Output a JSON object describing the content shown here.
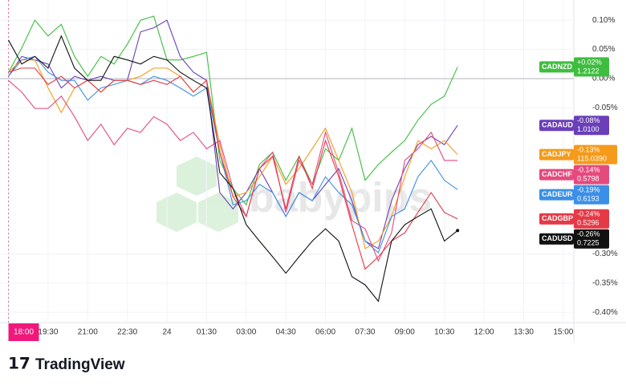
{
  "chart_data": {
    "type": "line",
    "x": [
      0,
      0.5,
      1,
      1.5,
      2,
      2.5,
      3,
      3.5,
      4,
      4.5,
      5,
      5.5,
      6,
      6.5,
      7,
      7.5,
      8,
      8.5,
      9,
      9.5,
      10,
      10.5,
      11,
      11.5,
      12,
      12.5,
      13,
      13.5,
      14,
      14.5,
      15,
      15.5,
      16,
      16.5,
      17
    ],
    "xlim": [
      -0.32,
      21.4
    ],
    "xticks": [
      {
        "value": 0,
        "label": "18:00"
      },
      {
        "value": 1.5,
        "label": "19:30"
      },
      {
        "value": 3,
        "label": "21:00"
      },
      {
        "value": 4.5,
        "label": "22:30"
      },
      {
        "value": 6,
        "label": "24"
      },
      {
        "value": 7.5,
        "label": "01:30"
      },
      {
        "value": 9,
        "label": "03:00"
      },
      {
        "value": 10.5,
        "label": "04:30"
      },
      {
        "value": 12,
        "label": "06:00"
      },
      {
        "value": 13.5,
        "label": "07:30"
      },
      {
        "value": 15,
        "label": "09:00"
      },
      {
        "value": 16.5,
        "label": "10:30"
      },
      {
        "value": 18,
        "label": "12:00"
      },
      {
        "value": 19.5,
        "label": "13:30"
      },
      {
        "value": 21,
        "label": "15:00"
      }
    ],
    "ylim": [
      -0.4176,
      0.1346
    ],
    "yticks": [
      {
        "value": 0.1,
        "label": "0.10%"
      },
      {
        "value": 0.05,
        "label": "0.05%"
      },
      {
        "value": 0,
        "label": "0.00%"
      },
      {
        "value": -0.05,
        "label": "-0.05%"
      },
      {
        "value": -0.3,
        "label": "-0.30%"
      },
      {
        "value": -0.35,
        "label": "-0.35%"
      },
      {
        "value": -0.4,
        "label": "-0.40%"
      }
    ],
    "grid": true,
    "watermark": "babypips",
    "footer": "TradingView",
    "series": [
      {
        "name": "CADNZD",
        "color": "#3fbd3f",
        "value_label": "+0.02%",
        "price": "1.2122",
        "values": [
          0.011,
          0.052,
          0.1,
          0.073,
          0.093,
          0.038,
          0.004,
          0.038,
          0.025,
          0.059,
          0.1,
          0.107,
          0.032,
          0.032,
          0.038,
          0.045,
          -0.14,
          -0.188,
          -0.216,
          -0.147,
          -0.126,
          -0.174,
          -0.133,
          -0.181,
          -0.12,
          -0.14,
          -0.085,
          -0.174,
          -0.147,
          -0.126,
          -0.106,
          -0.071,
          -0.044,
          -0.03,
          0.02
        ]
      },
      {
        "name": "CADAUD",
        "color": "#6a3fb8",
        "value_label": "-0.08%",
        "price": "1.0100",
        "values": [
          0.004,
          0.038,
          0.032,
          0.025,
          -0.016,
          0.004,
          -0.003,
          0.004,
          -0.003,
          -0.003,
          0.08,
          0.087,
          0.1,
          0.038,
          0.011,
          -0.003,
          -0.195,
          -0.223,
          -0.195,
          -0.154,
          -0.195,
          -0.236,
          -0.195,
          -0.209,
          -0.181,
          -0.154,
          -0.209,
          -0.278,
          -0.291,
          -0.209,
          -0.154,
          -0.113,
          -0.099,
          -0.113,
          -0.08
        ]
      },
      {
        "name": "CADJPY",
        "color": "#f59a1b",
        "value_label": "-0.13%",
        "price": "115.0390",
        "values": [
          0.011,
          0.032,
          0.032,
          -0.016,
          -0.058,
          -0.016,
          -0.003,
          -0.023,
          -0.003,
          -0.003,
          0.004,
          0.018,
          0.018,
          0.004,
          -0.023,
          -0.003,
          -0.113,
          -0.202,
          -0.195,
          -0.168,
          -0.133,
          -0.181,
          -0.154,
          -0.12,
          -0.085,
          -0.14,
          -0.195,
          -0.291,
          -0.278,
          -0.236,
          -0.168,
          -0.106,
          -0.12,
          -0.106,
          -0.13
        ]
      },
      {
        "name": "CADCHF",
        "color": "#e54a7d",
        "value_label": "-0.14%",
        "price": "0.5798",
        "values": [
          -0.003,
          -0.023,
          -0.051,
          -0.051,
          -0.03,
          -0.065,
          -0.106,
          -0.078,
          -0.113,
          -0.085,
          -0.092,
          -0.065,
          -0.078,
          -0.106,
          -0.092,
          -0.12,
          -0.106,
          -0.188,
          -0.236,
          -0.154,
          -0.126,
          -0.229,
          -0.14,
          -0.181,
          -0.092,
          -0.161,
          -0.243,
          -0.257,
          -0.312,
          -0.264,
          -0.14,
          -0.12,
          -0.092,
          -0.14,
          -0.14
        ]
      },
      {
        "name": "CADEUR",
        "color": "#3b8fe6",
        "value_label": "-0.19%",
        "price": "0.6193",
        "values": [
          0.004,
          0.032,
          0.038,
          0.011,
          -0.003,
          -0.003,
          -0.037,
          -0.016,
          -0.01,
          -0.003,
          -0.01,
          0.004,
          -0.003,
          -0.016,
          -0.03,
          -0.016,
          -0.126,
          -0.216,
          -0.209,
          -0.181,
          -0.195,
          -0.236,
          -0.195,
          -0.209,
          -0.168,
          -0.195,
          -0.216,
          -0.278,
          -0.298,
          -0.236,
          -0.223,
          -0.168,
          -0.14,
          -0.174,
          -0.19
        ]
      },
      {
        "name": "CADGBP",
        "color": "#e53946",
        "value_label": "-0.24%",
        "price": "0.5296",
        "values": [
          0.011,
          0.018,
          0.018,
          -0.01,
          0.004,
          -0.016,
          -0.003,
          -0.023,
          -0.003,
          -0.003,
          -0.01,
          -0.003,
          -0.01,
          0.004,
          -0.023,
          -0.003,
          -0.126,
          -0.202,
          -0.236,
          -0.154,
          -0.133,
          -0.223,
          -0.133,
          -0.188,
          -0.106,
          -0.168,
          -0.25,
          -0.326,
          -0.305,
          -0.278,
          -0.264,
          -0.229,
          -0.195,
          -0.229,
          -0.24
        ]
      },
      {
        "name": "CADUSD",
        "color": "#111111",
        "value_label": "-0.26%",
        "price": "0.7225",
        "values": [
          0.066,
          0.025,
          0.038,
          0.018,
          0.073,
          0.018,
          -0.003,
          -0.003,
          0.038,
          0.032,
          0.025,
          0.038,
          0.032,
          0.011,
          -0.003,
          -0.016,
          -0.161,
          -0.188,
          -0.25,
          -0.278,
          -0.305,
          -0.333,
          -0.305,
          -0.278,
          -0.257,
          -0.278,
          -0.339,
          -0.353,
          -0.381,
          -0.278,
          -0.25,
          -0.236,
          -0.223,
          -0.278,
          -0.26
        ]
      }
    ]
  }
}
